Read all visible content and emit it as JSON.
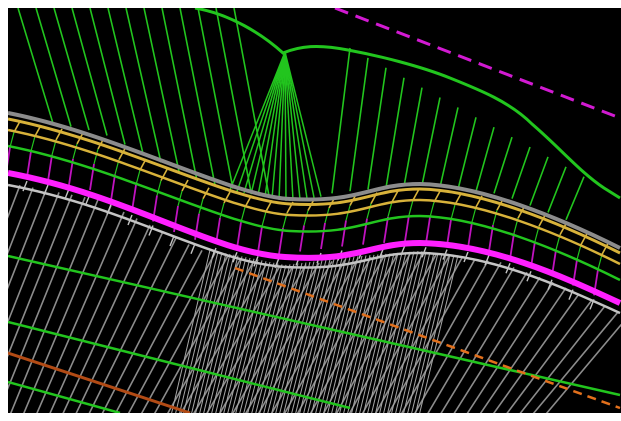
{
  "canvas": {
    "background": "#000000",
    "frame_color": "#ffffff"
  },
  "palette": {
    "green": "#22c51e",
    "bright_green": "#2ee82a",
    "magenta": "#ff1fff",
    "dark_magenta": "#c013c0",
    "yellow": "#d8b23a",
    "gray": "#c4c4c4",
    "dark_gray": "#8c8c8c",
    "orange": "#e2701c",
    "dark_orange": "#b24b15"
  },
  "layers": [
    "upper-slope-fan",
    "corridor-centerline",
    "lane-offset-lines",
    "right-of-way-lines",
    "lower-grid-pattern"
  ]
}
